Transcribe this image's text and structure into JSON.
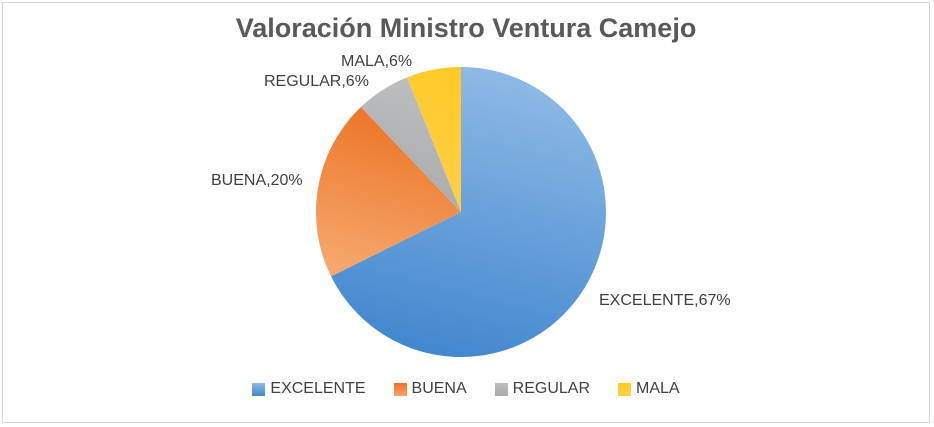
{
  "window": {
    "background": "#FFFFFF",
    "border_color": "#D5D5D5"
  },
  "chart_data": {
    "type": "pie",
    "title": "Valoración Ministro Ventura Camejo",
    "categories": [
      "EXCELENTE",
      "BUENA",
      "REGULAR",
      "MALA"
    ],
    "values": [
      67,
      20,
      6,
      6
    ],
    "unit": "%",
    "start_angle_deg": 0,
    "direction": "clockwise",
    "legend_position": "bottom",
    "title_color": "#595959",
    "label_color": "#404040",
    "slices": [
      {
        "label": "EXCELENTE",
        "value": 67,
        "data_label": "EXCELENTE,67%",
        "color": "#5B9BD5",
        "gradient": [
          "#8FBAE6",
          "#4287CF"
        ]
      },
      {
        "label": "BUENA",
        "value": 20,
        "data_label": "BUENA,20%",
        "color": "#ED7D31",
        "gradient": [
          "#EC7223",
          "#F5A76D"
        ]
      },
      {
        "label": "REGULAR",
        "value": 6,
        "data_label": "REGULAR,6%",
        "color": "#A5A5A5",
        "gradient": [
          "#BDBEC0",
          "#A9AAAC"
        ]
      },
      {
        "label": "MALA",
        "value": 6,
        "data_label": "MALA,6%",
        "color": "#FFC000",
        "gradient": [
          "#FECA27",
          "#FDD14B"
        ]
      }
    ]
  }
}
